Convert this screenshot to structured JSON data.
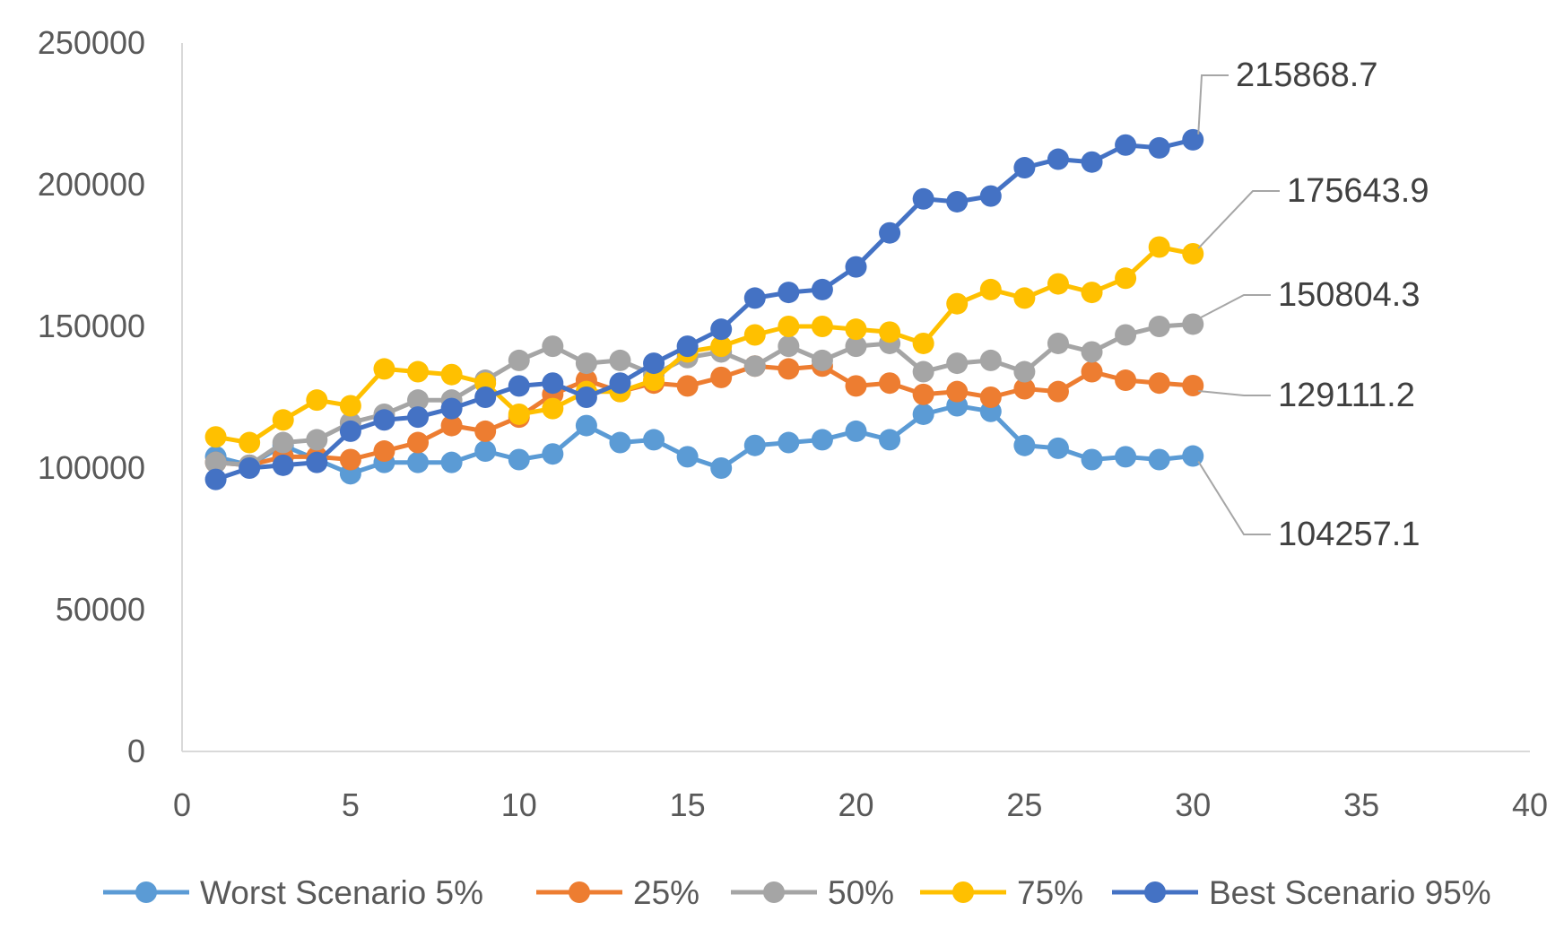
{
  "chart_data": {
    "type": "line",
    "title": "",
    "xlabel": "",
    "ylabel": "",
    "xlim": [
      0,
      40
    ],
    "ylim": [
      0,
      250000
    ],
    "x_ticks": [
      "0",
      "5",
      "10",
      "15",
      "20",
      "25",
      "30",
      "35",
      "40"
    ],
    "y_ticks": [
      "0",
      "50000",
      "100000",
      "150000",
      "200000",
      "250000"
    ],
    "grid": false,
    "legend_position": "bottom",
    "x": [
      1,
      2,
      3,
      4,
      5,
      6,
      7,
      8,
      9,
      10,
      11,
      12,
      13,
      14,
      15,
      16,
      17,
      18,
      19,
      20,
      21,
      22,
      23,
      24,
      25,
      26,
      27,
      28,
      29,
      30
    ],
    "series": [
      {
        "name": "Worst Scenario 5%",
        "color": "#5B9BD5",
        "values": [
          104000,
          101000,
          108000,
          103000,
          98000,
          102000,
          102000,
          102000,
          106000,
          103000,
          105000,
          115000,
          109000,
          110000,
          104000,
          100000,
          108000,
          109000,
          110000,
          113000,
          110000,
          119000,
          122000,
          120000,
          108000,
          107000,
          103000,
          104000,
          103000,
          104257.1
        ],
        "end_label": "104257.1"
      },
      {
        "name": "25%",
        "color": "#ED7D31",
        "values": [
          102000,
          101000,
          104000,
          104000,
          103000,
          106000,
          109000,
          115000,
          113000,
          118000,
          126000,
          131000,
          127000,
          130000,
          129000,
          132000,
          136000,
          135000,
          136000,
          129000,
          130000,
          126000,
          127000,
          125000,
          128000,
          127000,
          134000,
          131000,
          130000,
          129111.2
        ],
        "end_label": "129111.2"
      },
      {
        "name": "50%",
        "color": "#A5A5A5",
        "values": [
          102000,
          101000,
          109000,
          110000,
          116000,
          119000,
          124000,
          124000,
          131000,
          138000,
          143000,
          137000,
          138000,
          133000,
          139000,
          141000,
          136000,
          143000,
          138000,
          143000,
          144000,
          134000,
          137000,
          138000,
          134000,
          144000,
          141000,
          147000,
          150000,
          150804.3
        ],
        "end_label": "150804.3"
      },
      {
        "name": "75%",
        "color": "#FFC000",
        "values": [
          111000,
          109000,
          117000,
          124000,
          122000,
          135000,
          134000,
          133000,
          130000,
          119000,
          121000,
          127000,
          127000,
          131000,
          141000,
          143000,
          147000,
          150000,
          150000,
          149000,
          148000,
          144000,
          158000,
          163000,
          160000,
          165000,
          162000,
          167000,
          178000,
          175643.9
        ],
        "end_label": "175643.9"
      },
      {
        "name": "Best Scenario 95%",
        "color": "#4472C4",
        "values": [
          96000,
          100000,
          101000,
          102000,
          113000,
          117000,
          118000,
          121000,
          125000,
          129000,
          130000,
          125000,
          130000,
          137000,
          143000,
          149000,
          160000,
          162000,
          163000,
          171000,
          183000,
          195000,
          194000,
          196000,
          206000,
          209000,
          208000,
          214000,
          213000,
          215868.7
        ],
        "end_label": "215868.7"
      }
    ]
  }
}
